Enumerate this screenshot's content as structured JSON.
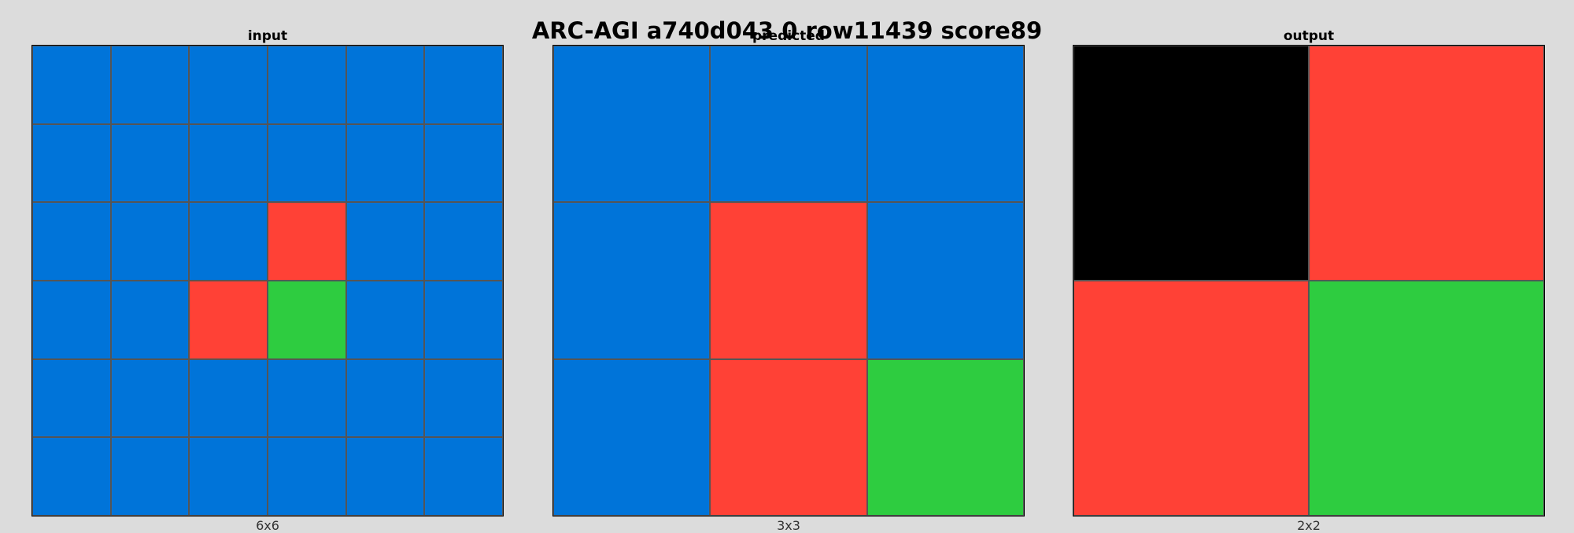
{
  "title": "ARC-AGI a740d043 0 row11439 score89",
  "palette": {
    "black": "#000000",
    "blue": "#0074d9",
    "red": "#ff4136",
    "green": "#2ecc40",
    "grid_line": "#555555",
    "background": "#dcdcdc"
  },
  "panels": [
    {
      "key": "input",
      "label": "input",
      "size_label": "6x6",
      "grid": [
        [
          "blue",
          "blue",
          "blue",
          "blue",
          "blue",
          "blue"
        ],
        [
          "blue",
          "blue",
          "blue",
          "blue",
          "blue",
          "blue"
        ],
        [
          "blue",
          "blue",
          "blue",
          "red",
          "blue",
          "blue"
        ],
        [
          "blue",
          "blue",
          "red",
          "green",
          "blue",
          "blue"
        ],
        [
          "blue",
          "blue",
          "blue",
          "blue",
          "blue",
          "blue"
        ],
        [
          "blue",
          "blue",
          "blue",
          "blue",
          "blue",
          "blue"
        ]
      ]
    },
    {
      "key": "predicted",
      "label": "predicted",
      "size_label": "3x3",
      "grid": [
        [
          "blue",
          "blue",
          "blue"
        ],
        [
          "blue",
          "red",
          "blue"
        ],
        [
          "blue",
          "red",
          "green"
        ]
      ]
    },
    {
      "key": "output",
      "label": "output",
      "size_label": "2x2",
      "grid": [
        [
          "black",
          "red"
        ],
        [
          "red",
          "green"
        ]
      ]
    }
  ]
}
